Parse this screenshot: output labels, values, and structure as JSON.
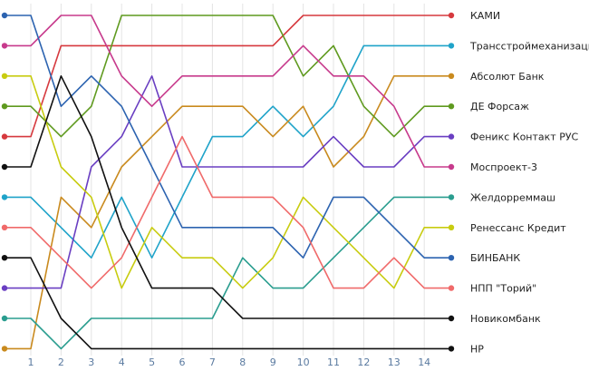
{
  "chart_data": {
    "type": "line",
    "subtype": "bump-ranking",
    "title": "",
    "xlabel": "",
    "ylabel": "",
    "x": [
      1,
      2,
      3,
      4,
      5,
      6,
      7,
      8,
      9,
      10,
      11,
      12,
      13,
      14
    ],
    "rank_range": [
      1,
      12
    ],
    "grid": "vertical",
    "legend": "right-end labels",
    "series": [
      {
        "name": "КАМИ",
        "color": "#d6393e",
        "start_rank": 5,
        "ranks": [
          5,
          2,
          2,
          2,
          2,
          2,
          2,
          2,
          2,
          1,
          1,
          1,
          1,
          1
        ]
      },
      {
        "name": "Трансстроймеханизация",
        "color": "#1fa3c9",
        "start_rank": 7,
        "ranks": [
          7,
          8,
          9,
          7,
          9,
          7,
          5,
          5,
          4,
          5,
          4,
          2,
          2,
          2
        ]
      },
      {
        "name": "Абсолют Банк",
        "color": "#c98a1e",
        "start_rank": 12,
        "ranks": [
          12,
          7,
          8,
          6,
          5,
          4,
          4,
          4,
          5,
          4,
          6,
          5,
          3,
          3
        ]
      },
      {
        "name": "ДЕ Форсаж",
        "color": "#5f9a1f",
        "start_rank": 4,
        "ranks": [
          4,
          5,
          4,
          1,
          1,
          1,
          1,
          1,
          1,
          3,
          2,
          4,
          5,
          4
        ]
      },
      {
        "name": "Феникс Контакт РУС",
        "color": "#6a3fc2",
        "start_rank": 10,
        "ranks": [
          10,
          10,
          6,
          5,
          3,
          6,
          6,
          6,
          6,
          6,
          5,
          6,
          6,
          5
        ]
      },
      {
        "name": "Моспроект-3",
        "color": "#c73a8c",
        "start_rank": 2,
        "ranks": [
          2,
          1,
          1,
          3,
          4,
          3,
          3,
          3,
          3,
          2,
          3,
          3,
          4,
          6
        ]
      },
      {
        "name": "Желдорреммаш",
        "color": "#2a9d8f",
        "start_rank": 11,
        "ranks": [
          11,
          12,
          11,
          11,
          11,
          11,
          11,
          9,
          10,
          10,
          9,
          8,
          7,
          7
        ]
      },
      {
        "name": "Ренессанс Кредит",
        "color": "#c8cc10",
        "start_rank": 3,
        "ranks": [
          3,
          6,
          7,
          10,
          8,
          9,
          9,
          10,
          9,
          7,
          8,
          9,
          10,
          8
        ]
      },
      {
        "name": "БИНБАНК",
        "color": "#2c63b0",
        "start_rank": 1,
        "ranks": [
          1,
          4,
          3,
          4,
          6,
          8,
          8,
          8,
          8,
          9,
          7,
          7,
          8,
          9
        ]
      },
      {
        "name": "НПП \"Торий\"",
        "color": "#f06a6a",
        "start_rank": 8,
        "ranks": [
          8,
          9,
          10,
          9,
          7,
          5,
          7,
          7,
          7,
          8,
          10,
          10,
          9,
          10
        ]
      },
      {
        "name": "Новикомбанк",
        "color": "#111111",
        "start_rank": 6,
        "ranks": [
          6,
          3,
          5,
          8,
          10,
          10,
          10,
          11,
          11,
          11,
          11,
          11,
          11,
          11
        ]
      },
      {
        "name": "НР",
        "color": "#111111",
        "start_rank": 9,
        "ranks": [
          9,
          11,
          12,
          12,
          12,
          12,
          12,
          12,
          12,
          12,
          12,
          12,
          12,
          12
        ]
      }
    ]
  }
}
